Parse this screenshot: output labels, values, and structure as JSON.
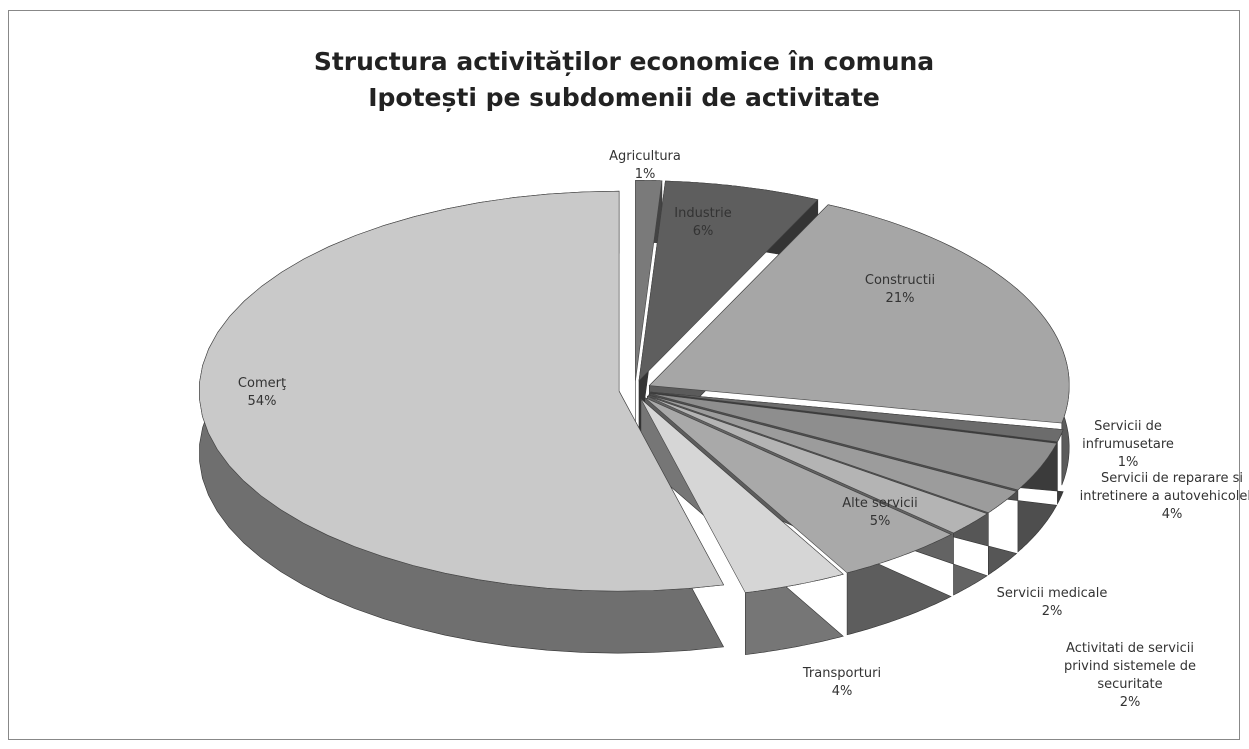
{
  "chart_data": {
    "type": "pie",
    "title": "Structura activităților economice în comuna Ipotești pe subdomenii de activitate",
    "categories": [
      "Agricultura",
      "Industrie",
      "Constructii",
      "Servicii de infrumusetare",
      "Servicii de reparare si intretinere a autovehicolelor",
      "Servicii medicale",
      "Activitati de servicii privind sistemele de securitate",
      "Alte servicii",
      "Transporturi",
      "Comerţ"
    ],
    "values": [
      1,
      6,
      21,
      1,
      4,
      2,
      2,
      5,
      4,
      54
    ],
    "value_labels": [
      "1%",
      "6%",
      "21%",
      "1%",
      "4%",
      "2%",
      "2%",
      "5%",
      "4%",
      "54%"
    ],
    "colors": [
      "#7a7a7a",
      "#5e5e5e",
      "#a6a6a6",
      "#6c6c6c",
      "#8e8e8e",
      "#9c9c9c",
      "#b4b4b4",
      "#a9a9a9",
      "#d6d6d6",
      "#c9c9c9"
    ]
  }
}
